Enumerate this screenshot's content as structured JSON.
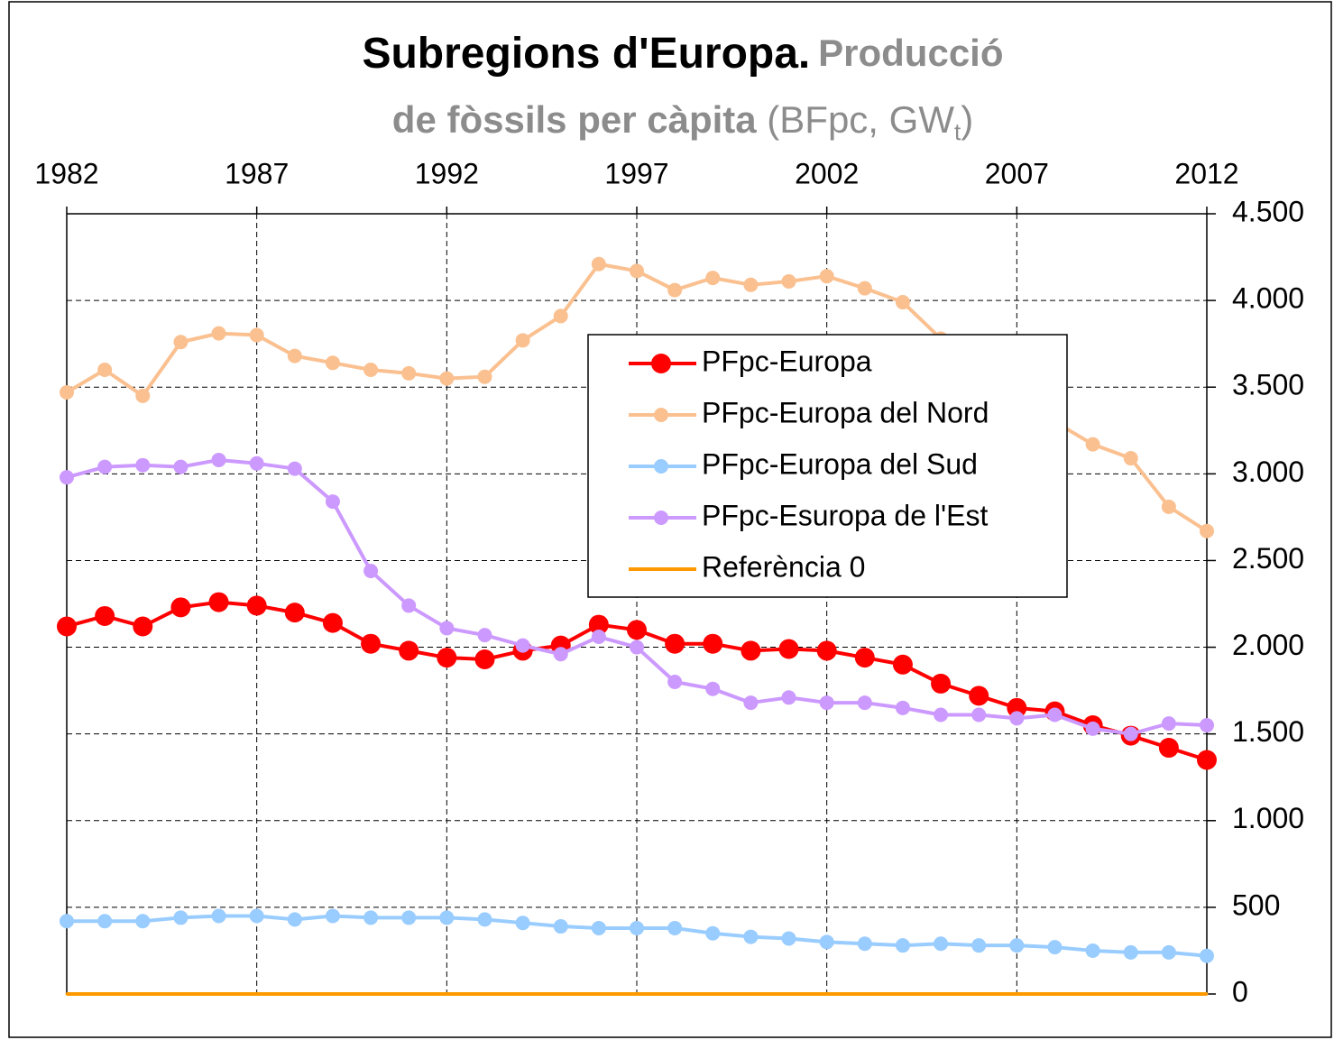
{
  "chart_data": {
    "type": "line",
    "title": "Subregions d'Europa.",
    "subtitle": [
      "Producció",
      "de fòssils per càpita",
      "(BFpc, GW",
      "t",
      ")"
    ],
    "x": [
      1982,
      1983,
      1984,
      1985,
      1986,
      1987,
      1988,
      1989,
      1990,
      1991,
      1992,
      1993,
      1994,
      1995,
      1996,
      1997,
      1998,
      1999,
      2000,
      2001,
      2002,
      2003,
      2004,
      2005,
      2006,
      2007,
      2008,
      2009,
      2010,
      2011,
      2012
    ],
    "series": [
      {
        "name": "PFpc-Europa",
        "color": "#ff0000",
        "marker_size": 11,
        "values": [
          2120,
          2180,
          2120,
          2230,
          2260,
          2240,
          2200,
          2140,
          2020,
          1980,
          1940,
          1930,
          1980,
          2010,
          2130,
          2100,
          2020,
          2020,
          1980,
          1990,
          1980,
          1940,
          1900,
          1790,
          1720,
          1650,
          1630,
          1550,
          1490,
          1420,
          1350
        ]
      },
      {
        "name": "PFpc-Europa del Nord",
        "color": "#fac090",
        "marker_size": 8,
        "values": [
          3470,
          3600,
          3450,
          3760,
          3810,
          3800,
          3680,
          3640,
          3600,
          3580,
          3550,
          3560,
          3770,
          3910,
          4210,
          4170,
          4060,
          4130,
          4090,
          4110,
          4140,
          4070,
          3990,
          3780,
          3600,
          3440,
          3300,
          3170,
          3090,
          2810,
          2670
        ]
      },
      {
        "name": "PFpc-Europa del Sud",
        "color": "#99ccff",
        "marker_size": 8,
        "values": [
          420,
          420,
          420,
          440,
          450,
          450,
          430,
          450,
          440,
          440,
          440,
          430,
          410,
          390,
          380,
          380,
          380,
          350,
          330,
          320,
          300,
          290,
          280,
          290,
          280,
          280,
          270,
          250,
          240,
          240,
          220
        ]
      },
      {
        "name": "PFpc-Esuropa de l'Est",
        "color": "#cc99ff",
        "marker_size": 8,
        "values": [
          2980,
          3040,
          3050,
          3040,
          3080,
          3060,
          3030,
          2840,
          2440,
          2240,
          2110,
          2070,
          2010,
          1960,
          2060,
          2000,
          1800,
          1760,
          1680,
          1710,
          1680,
          1680,
          1650,
          1610,
          1610,
          1590,
          1610,
          1530,
          1500,
          1560,
          1550
        ]
      },
      {
        "name": "Referència 0",
        "color": "#ff9900",
        "marker_size": 1.5,
        "values": [
          0,
          0,
          0,
          0,
          0,
          0,
          0,
          0,
          0,
          0,
          0,
          0,
          0,
          0,
          0,
          0,
          0,
          0,
          0,
          0,
          0,
          0,
          0,
          0,
          0,
          0,
          0,
          0,
          0,
          0,
          0
        ]
      }
    ],
    "xlim": [
      1982,
      2012
    ],
    "xticks": [
      1982,
      1987,
      1992,
      1997,
      2002,
      2007,
      2012
    ],
    "ylim": [
      0,
      4500
    ],
    "yticks": [
      0,
      500,
      {
        "value": 1000,
        "label": "1.000"
      },
      {
        "value": 1500,
        "label": "1.500"
      },
      {
        "value": 2000,
        "label": "2.000"
      },
      {
        "value": 2500,
        "label": "2.500"
      },
      {
        "value": 3000,
        "label": "3.000"
      },
      {
        "value": 3500,
        "label": "3.500"
      },
      {
        "value": 4000,
        "label": "4.000"
      },
      {
        "value": 4500,
        "label": "4.500"
      }
    ],
    "grid": true,
    "legend": "center right"
  }
}
